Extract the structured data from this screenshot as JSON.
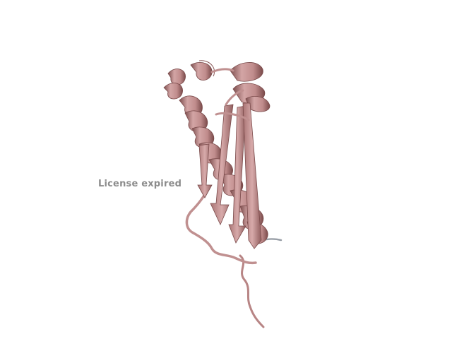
{
  "viewer": {
    "background": "#ffffff",
    "molecule_color": "#c99797",
    "molecule_shadow_color": "#8a5a5a",
    "representation": "cartoon"
  },
  "watermark": {
    "text": "License expired",
    "color": "#8c8c8c"
  }
}
